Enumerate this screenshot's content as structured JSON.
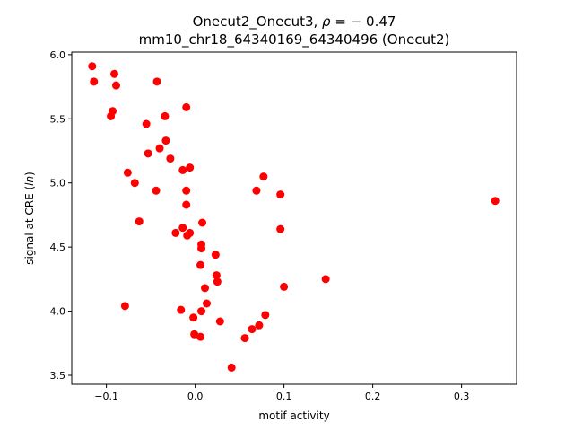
{
  "chart_data": {
    "type": "scatter",
    "title_line1_prefix": "Onecut2_Onecut3, ",
    "title_rho_symbol": "ρ",
    "title_rho_value": " = − 0.47",
    "title_line2": "mm10_chr18_64340169_64340496 (Onecut2)",
    "xlabel": "motif activity",
    "ylabel_prefix": "signal at CRE (",
    "ylabel_italic": "ln",
    "ylabel_suffix": ")",
    "xlim": [
      -0.139,
      0.362
    ],
    "ylim": [
      3.43,
      6.02
    ],
    "xticks": [
      -0.1,
      0.0,
      0.1,
      0.2,
      0.3
    ],
    "xtick_labels": [
      "−0.1",
      "0.0",
      "0.1",
      "0.2",
      "0.3"
    ],
    "yticks": [
      3.5,
      4.0,
      4.5,
      5.0,
      5.5,
      6.0
    ],
    "ytick_labels": [
      "3.5",
      "4.0",
      "4.5",
      "5.0",
      "5.5",
      "6.0"
    ],
    "grid": false,
    "marker_color": "#ff0000",
    "points": [
      [
        -0.116,
        5.91
      ],
      [
        -0.114,
        5.79
      ],
      [
        -0.091,
        5.85
      ],
      [
        -0.089,
        5.76
      ],
      [
        -0.043,
        5.79
      ],
      [
        -0.095,
        5.52
      ],
      [
        -0.093,
        5.56
      ],
      [
        -0.01,
        5.59
      ],
      [
        -0.055,
        5.46
      ],
      [
        -0.034,
        5.52
      ],
      [
        -0.033,
        5.33
      ],
      [
        -0.04,
        5.27
      ],
      [
        -0.053,
        5.23
      ],
      [
        -0.028,
        5.19
      ],
      [
        -0.076,
        5.08
      ],
      [
        -0.014,
        5.1
      ],
      [
        -0.006,
        5.12
      ],
      [
        -0.044,
        4.94
      ],
      [
        -0.068,
        5.0
      ],
      [
        -0.01,
        4.94
      ],
      [
        -0.01,
        4.83
      ],
      [
        -0.063,
        4.7
      ],
      [
        -0.014,
        4.65
      ],
      [
        -0.022,
        4.61
      ],
      [
        0.008,
        4.69
      ],
      [
        -0.006,
        4.61
      ],
      [
        -0.009,
        4.59
      ],
      [
        0.007,
        4.52
      ],
      [
        0.007,
        4.49
      ],
      [
        0.023,
        4.44
      ],
      [
        0.006,
        4.36
      ],
      [
        0.024,
        4.28
      ],
      [
        0.025,
        4.23
      ],
      [
        0.011,
        4.18
      ],
      [
        -0.079,
        4.04
      ],
      [
        -0.016,
        4.01
      ],
      [
        0.013,
        4.06
      ],
      [
        0.007,
        4.0
      ],
      [
        -0.002,
        3.95
      ],
      [
        0.028,
        3.92
      ],
      [
        -0.001,
        3.82
      ],
      [
        0.006,
        3.8
      ],
      [
        0.056,
        3.79
      ],
      [
        0.064,
        3.86
      ],
      [
        0.072,
        3.89
      ],
      [
        0.079,
        3.97
      ],
      [
        0.041,
        3.56
      ],
      [
        0.077,
        5.05
      ],
      [
        0.069,
        4.94
      ],
      [
        0.096,
        4.91
      ],
      [
        0.096,
        4.64
      ],
      [
        0.1,
        4.19
      ],
      [
        0.147,
        4.25
      ],
      [
        0.338,
        4.86
      ]
    ]
  }
}
